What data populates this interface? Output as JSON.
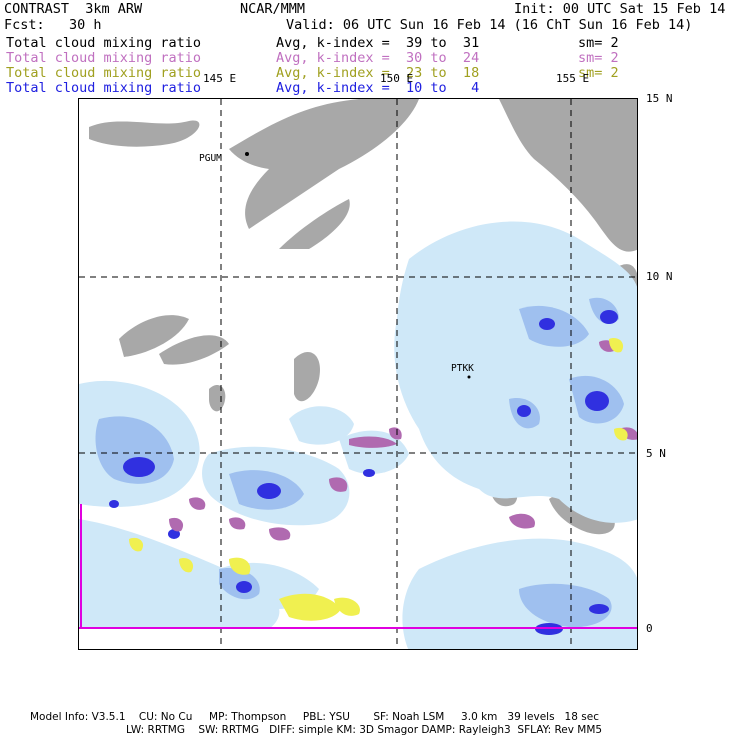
{
  "header": {
    "model": "CONTRAST  3km ARW",
    "center": "NCAR/MMM",
    "init": "Init: 00 UTC Sat 15 Feb 14",
    "fcst": "Fcst:   30 h",
    "valid": "Valid: 06 UTC Sun 16 Feb 14 (16 ChT Sun 16 Feb 14)"
  },
  "fields": [
    {
      "name": "Total cloud mixing ratio",
      "range": "Avg, k-index =  39 to  31",
      "sm": "sm= 2",
      "color": "#000000"
    },
    {
      "name": "Total cloud mixing ratio",
      "range": "Avg, k-index =  30 to  24",
      "sm": "sm= 2",
      "color": "#c070c0"
    },
    {
      "name": "Total cloud mixing ratio",
      "range": "Avg, k-index =  23 to  18",
      "sm": "sm= 2",
      "color": "#a0a020"
    },
    {
      "name": "Total cloud mixing ratio",
      "range": "Avg, k-index =  10 to   4",
      "sm": "",
      "color": "#2020e0"
    }
  ],
  "map": {
    "lon_labels": [
      "145 E",
      "150 E",
      "155 E"
    ],
    "lat_labels": [
      "15 N",
      "10 N",
      "5 N",
      "0"
    ],
    "stations": [
      "PGUM",
      "PTKK"
    ]
  },
  "footer": {
    "line1": "Model Info: V3.5.1    CU: No Cu     MP: Thompson     PBL: YSU       SF: Noah LSM     3.0 km   39 levels   18 sec",
    "line2": "LW: RRTMG    SW: RRTMG   DIFF: simple KM: 3D Smagor DAMP: Rayleigh3  SFLAY: Rev MM5"
  }
}
